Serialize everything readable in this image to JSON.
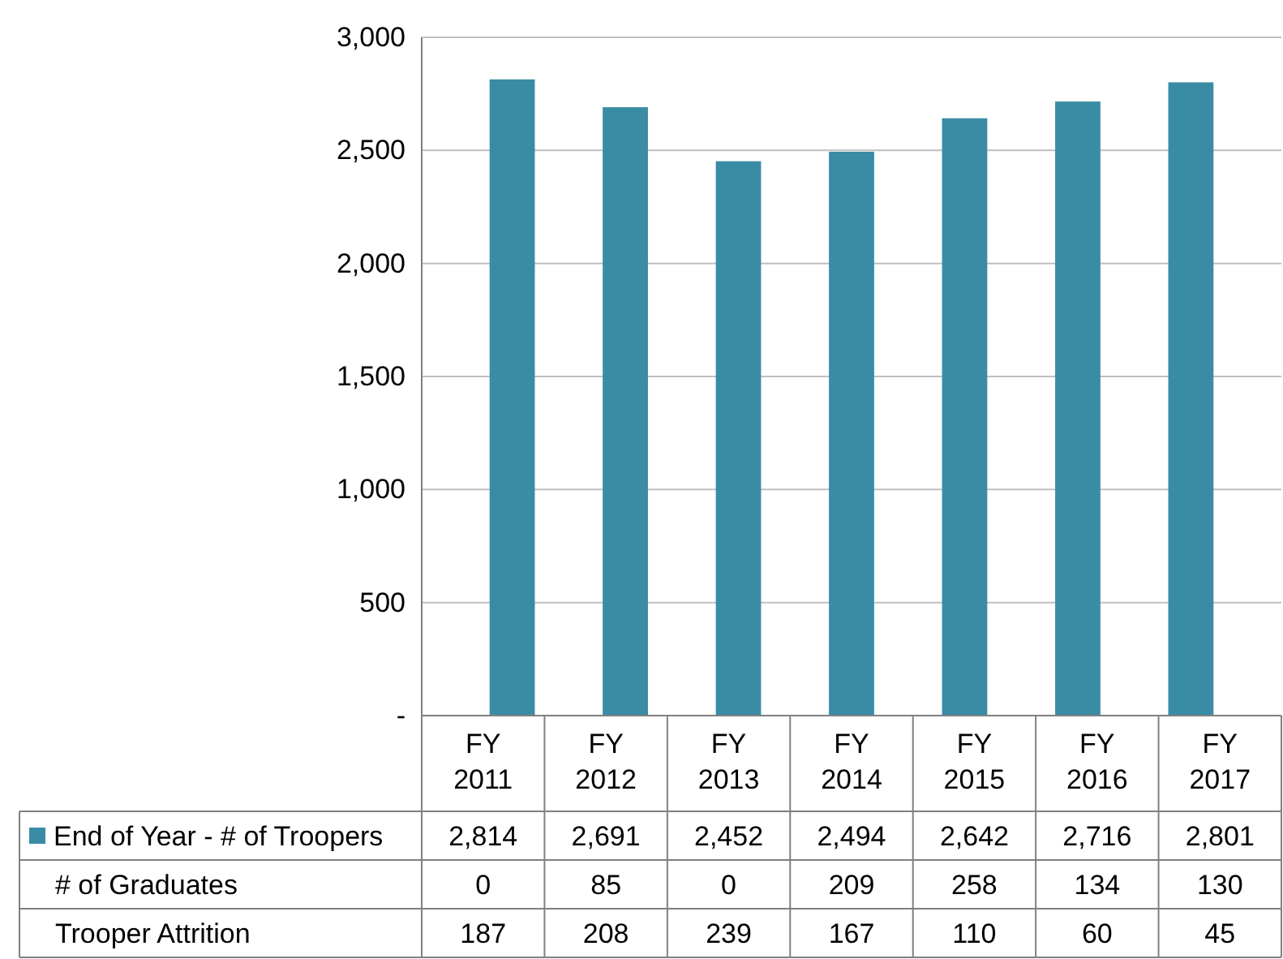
{
  "chart_data": [
    {
      "type": "bar",
      "categories": [
        "FY 2011",
        "FY 2012",
        "FY 2013",
        "FY 2014",
        "FY 2015",
        "FY 2016",
        "FY 2017"
      ],
      "series": [
        {
          "name": "End of Year - # of Troopers",
          "color": "#3a8ca5",
          "values": [
            2814,
            2691,
            2452,
            2494,
            2642,
            2716,
            2801
          ],
          "value_labels": [
            "2,814",
            "2,691",
            "2,452",
            "2,494",
            "2,642",
            "2,716",
            "2,801"
          ]
        }
      ],
      "ylim": [
        0,
        3000
      ],
      "yticks": [
        {
          "value": 0,
          "label": "-"
        },
        {
          "value": 500,
          "label": "500"
        },
        {
          "value": 1000,
          "label": "1,000"
        },
        {
          "value": 1500,
          "label": "1,500"
        },
        {
          "value": 2000,
          "label": "2,000"
        },
        {
          "value": 2500,
          "label": "2,500"
        },
        {
          "value": 3000,
          "label": "3,000"
        }
      ],
      "grid": "y",
      "legend": "bottom"
    },
    {
      "type": "other",
      "title": "# of Graduates",
      "values": [
        0,
        85,
        0,
        209,
        258,
        134,
        130
      ],
      "data_labels": true
    },
    {
      "type": "other",
      "title": "Trooper Attrition",
      "values": [
        187,
        208,
        239,
        167,
        110,
        60,
        45
      ],
      "data_labels": true
    }
  ]
}
